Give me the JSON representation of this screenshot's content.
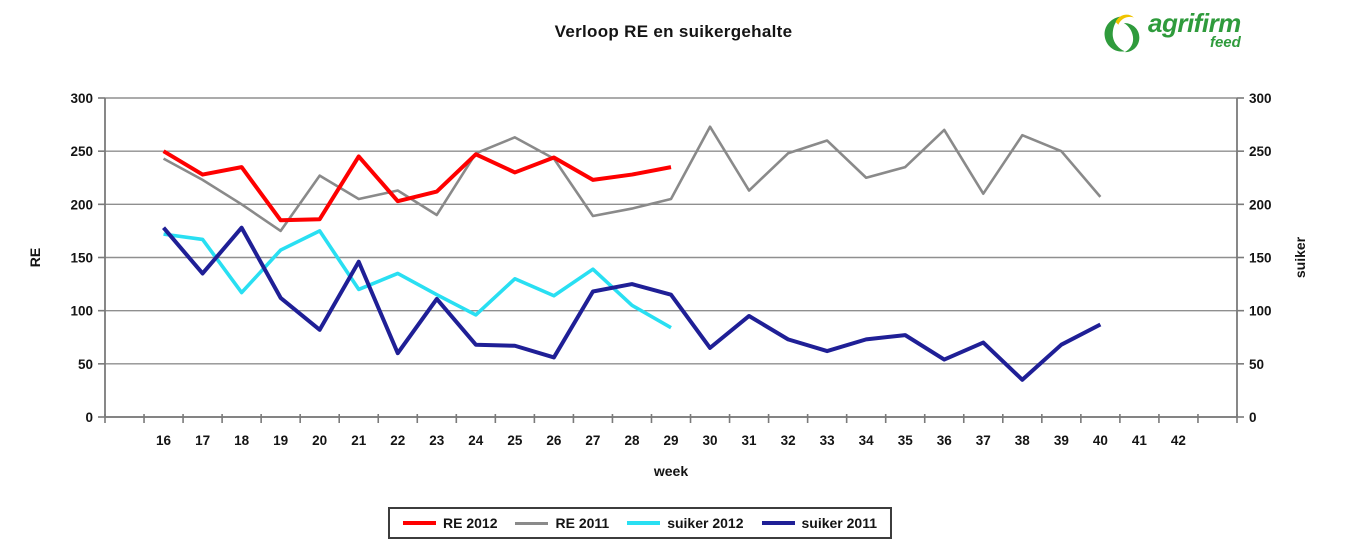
{
  "title": "Verloop RE en suikergehalte",
  "logo": {
    "brand": "agrifirm",
    "sub": "feed",
    "icon": "agrifirm-leaf-icon",
    "green": "#2f9b3c",
    "yellow": "#f0c400"
  },
  "chart_data": {
    "type": "line",
    "title": "Verloop RE en suikergehalte",
    "xlabel": "week",
    "ylabel_left": "RE",
    "ylabel_right": "suiker",
    "x_categories": [
      16,
      17,
      18,
      19,
      20,
      21,
      22,
      23,
      24,
      25,
      26,
      27,
      28,
      29,
      30,
      31,
      32,
      33,
      34,
      35,
      36,
      37,
      38,
      39,
      40,
      41,
      42
    ],
    "ylim": [
      0,
      300
    ],
    "yticks": [
      0,
      50,
      100,
      150,
      200,
      250,
      300
    ],
    "grid": true,
    "legend_position": "bottom",
    "series": [
      {
        "name": "RE 2012",
        "color": "#fe0000",
        "axis": "left",
        "stroke_width": 4,
        "weeks": [
          16,
          17,
          18,
          19,
          20,
          21,
          22,
          23,
          24,
          25,
          26,
          27,
          28,
          29
        ],
        "values": [
          250,
          228,
          235,
          185,
          186,
          245,
          203,
          212,
          247,
          230,
          244,
          223,
          228,
          235
        ]
      },
      {
        "name": "RE 2011",
        "color": "#8a8a8a",
        "axis": "left",
        "stroke_width": 2.6,
        "weeks": [
          16,
          17,
          18,
          19,
          20,
          21,
          22,
          23,
          24,
          25,
          26,
          27,
          28,
          29,
          30,
          31,
          32,
          33,
          34,
          35,
          36,
          37,
          38,
          39,
          40
        ],
        "values": [
          243,
          223,
          200,
          175,
          227,
          205,
          213,
          190,
          248,
          263,
          243,
          189,
          196,
          205,
          273,
          213,
          248,
          260,
          225,
          235,
          270,
          210,
          265,
          250,
          207
        ]
      },
      {
        "name": "suiker 2012",
        "color": "#29dff2",
        "axis": "right",
        "stroke_width": 3.6,
        "weeks": [
          16,
          17,
          18,
          19,
          20,
          21,
          22,
          23,
          24,
          25,
          26,
          27,
          28,
          29
        ],
        "values": [
          172,
          167,
          117,
          157,
          175,
          120,
          135,
          115,
          96,
          130,
          114,
          139,
          105,
          84
        ]
      },
      {
        "name": "suiker 2011",
        "color": "#1f1f96",
        "axis": "right",
        "stroke_width": 4,
        "weeks": [
          16,
          17,
          18,
          19,
          20,
          21,
          22,
          23,
          24,
          25,
          26,
          27,
          28,
          29,
          30,
          31,
          32,
          33,
          34,
          35,
          36,
          37,
          38,
          39,
          40
        ],
        "values": [
          178,
          135,
          178,
          112,
          82,
          146,
          60,
          111,
          68,
          67,
          56,
          118,
          125,
          115,
          65,
          95,
          73,
          62,
          73,
          77,
          54,
          70,
          35,
          68,
          87
        ]
      }
    ]
  }
}
